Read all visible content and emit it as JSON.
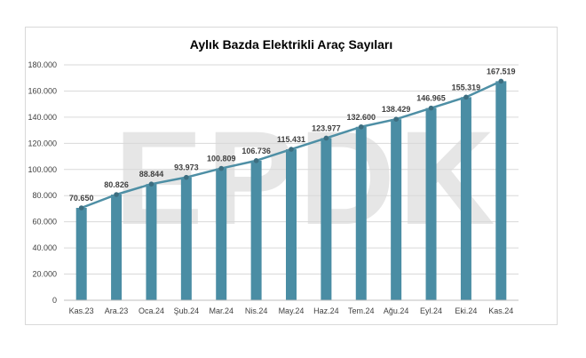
{
  "chart_data": {
    "type": "bar+line",
    "title": "Aylık Bazda Elektrikli Araç Sayıları",
    "categories": [
      "Kas.23",
      "Ara.23",
      "Oca.24",
      "Şub.24",
      "Mar.24",
      "Nis.24",
      "May.24",
      "Haz.24",
      "Tem.24",
      "Ağu.24",
      "Eyl.24",
      "Eki.24",
      "Kas.24"
    ],
    "values": [
      70650,
      80826,
      88844,
      93973,
      100809,
      106736,
      115431,
      123977,
      132600,
      138429,
      146965,
      155319,
      167519
    ],
    "data_labels": [
      "70.650",
      "80.826",
      "88.844",
      "93.973",
      "100.809",
      "106.736",
      "115.431",
      "123.977",
      "132.600",
      "138.429",
      "146.965",
      "155.319",
      "167.519"
    ],
    "yticks": [
      "0",
      "20.000",
      "40.000",
      "60.000",
      "80.000",
      "100.000",
      "120.000",
      "140.000",
      "160.000",
      "180.000"
    ],
    "ylim": [
      0,
      180000
    ],
    "grid": true,
    "legend": "none",
    "watermark": "EPDK",
    "colors": {
      "bar": "#4a8da4",
      "line": "#4e8fa5",
      "marker": "#3d6e80",
      "grid": "#d9d9d9",
      "watermark": "#e6e6e6"
    }
  }
}
